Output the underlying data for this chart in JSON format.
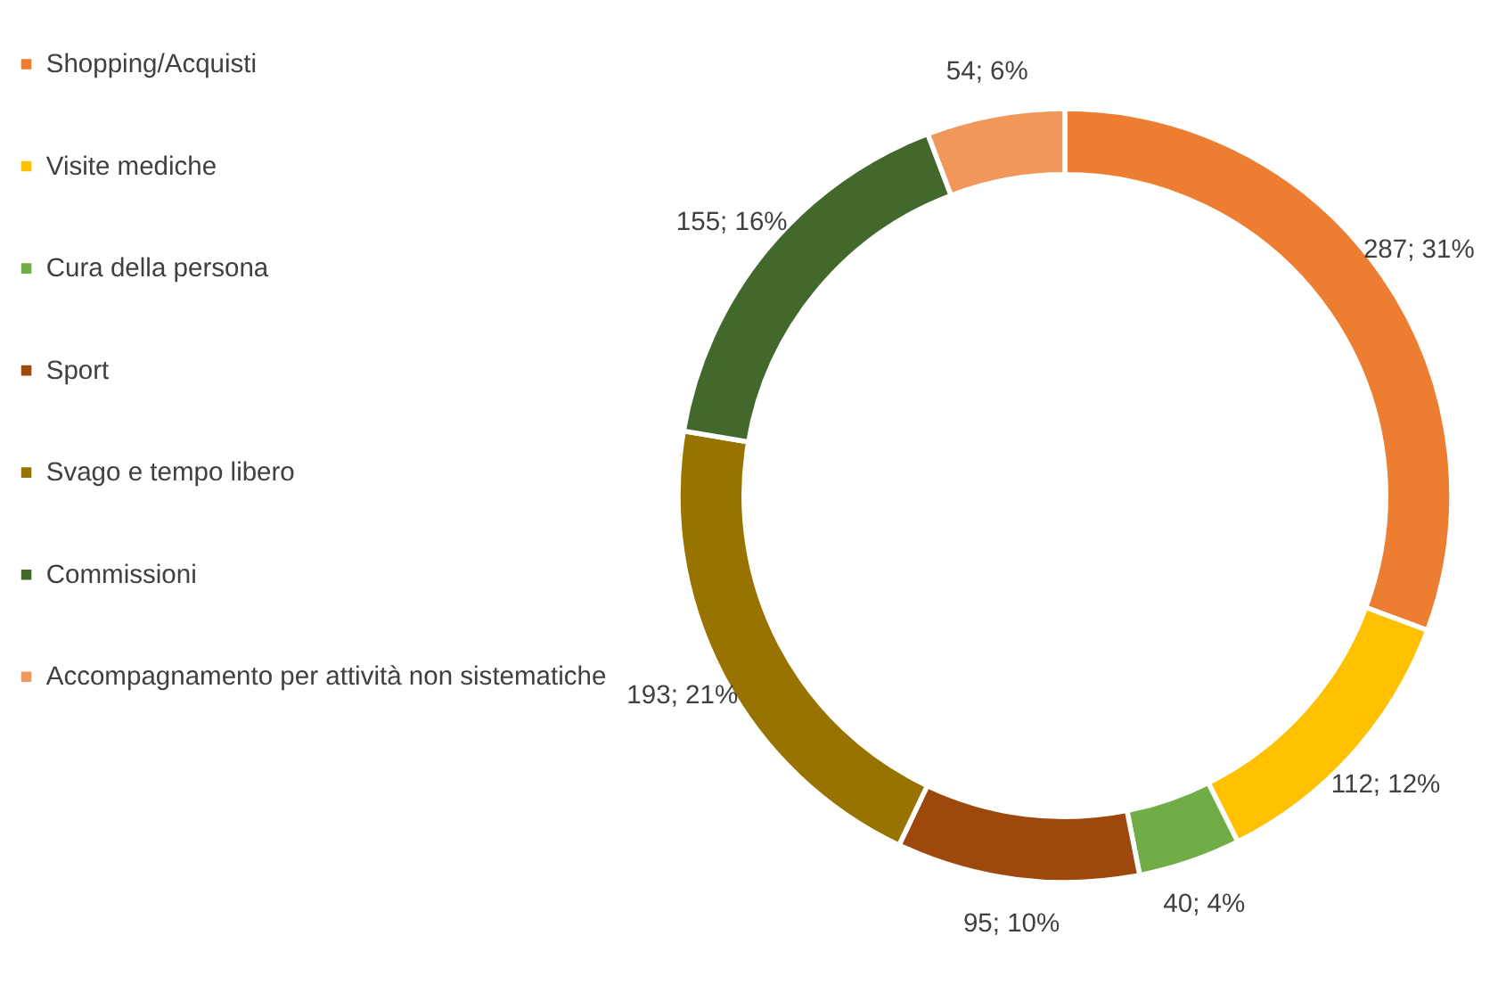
{
  "chart_data": {
    "type": "donut",
    "categories": [
      "Shopping/Acquisti",
      "Visite mediche",
      "Cura della persona",
      "Sport",
      "Svago e tempo libero",
      "Commissioni",
      "Accompagnamento per attività non sistematiche"
    ],
    "values": [
      287,
      112,
      40,
      95,
      193,
      155,
      54
    ],
    "colors": [
      "#ed7d31",
      "#ffc000",
      "#70ad47",
      "#9e480e",
      "#997300",
      "#43682b",
      "#f1975a"
    ],
    "value_labels": [
      "287; 31%",
      "112; 12%",
      "40; 4%",
      "95; 10%",
      "193; 21%",
      "155; 16%",
      "54; 6%"
    ],
    "legend": "left"
  }
}
